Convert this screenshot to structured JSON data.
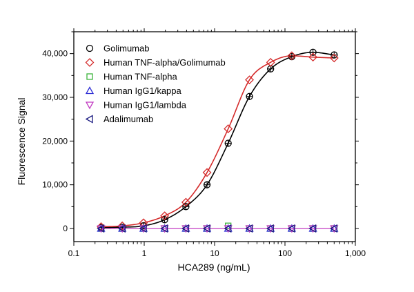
{
  "chart_data": {
    "type": "scatter",
    "title": "",
    "xlabel": "HCA289 (ng/mL)",
    "ylabel": "Fluorescence Signal",
    "xscale": "log",
    "xlim": [
      0.1,
      1000
    ],
    "ylim": [
      -3000,
      45000
    ],
    "xticks": [
      0.1,
      1,
      10,
      100,
      1000
    ],
    "xtick_labels": [
      "0.1",
      "1",
      "10",
      "100",
      "1,000"
    ],
    "yticks": [
      0,
      10000,
      20000,
      30000,
      40000
    ],
    "ytick_labels": [
      "0",
      "10,000",
      "20,000",
      "30,000",
      "40,000"
    ],
    "grid": false,
    "legend_position": "top-left",
    "x": [
      0.244,
      0.488,
      0.977,
      1.95,
      3.91,
      7.81,
      15.6,
      31.3,
      62.5,
      125,
      250,
      500
    ],
    "series": [
      {
        "name": "Golimumab",
        "marker": "circle",
        "color": "#000000",
        "fit_curve": true,
        "values": [
          200,
          300,
          600,
          2000,
          5000,
          10000,
          19500,
          30200,
          36500,
          39300,
          40300,
          39700
        ]
      },
      {
        "name": "Human TNF-alpha/Golimumab",
        "marker": "diamond",
        "color": "#d42a2a",
        "fit_curve": true,
        "values": [
          400,
          600,
          1300,
          2900,
          6000,
          12800,
          22800,
          34000,
          38000,
          39500,
          39200,
          39000
        ]
      },
      {
        "name": "Human TNF-alpha",
        "marker": "square",
        "color": "#3bb33b",
        "fit_curve": false,
        "values": [
          0,
          0,
          0,
          0,
          0,
          0,
          600,
          0,
          0,
          0,
          0,
          0
        ]
      },
      {
        "name": "Human IgG1/kappa",
        "marker": "triangle-up",
        "color": "#2a2ad4",
        "fit_curve": false,
        "values": [
          0,
          0,
          0,
          0,
          0,
          0,
          0,
          0,
          0,
          0,
          0,
          0
        ]
      },
      {
        "name": "Human IgG1/lambda",
        "marker": "triangle-down",
        "color": "#c23bc2",
        "fit_curve": false,
        "values": [
          0,
          0,
          0,
          0,
          0,
          0,
          0,
          0,
          0,
          0,
          0,
          0
        ]
      },
      {
        "name": "Adalimumab",
        "marker": "triangle-left",
        "color": "#1a1a80",
        "fit_curve": false,
        "values": [
          0,
          0,
          0,
          0,
          0,
          0,
          0,
          0,
          0,
          0,
          0,
          0
        ]
      }
    ]
  }
}
